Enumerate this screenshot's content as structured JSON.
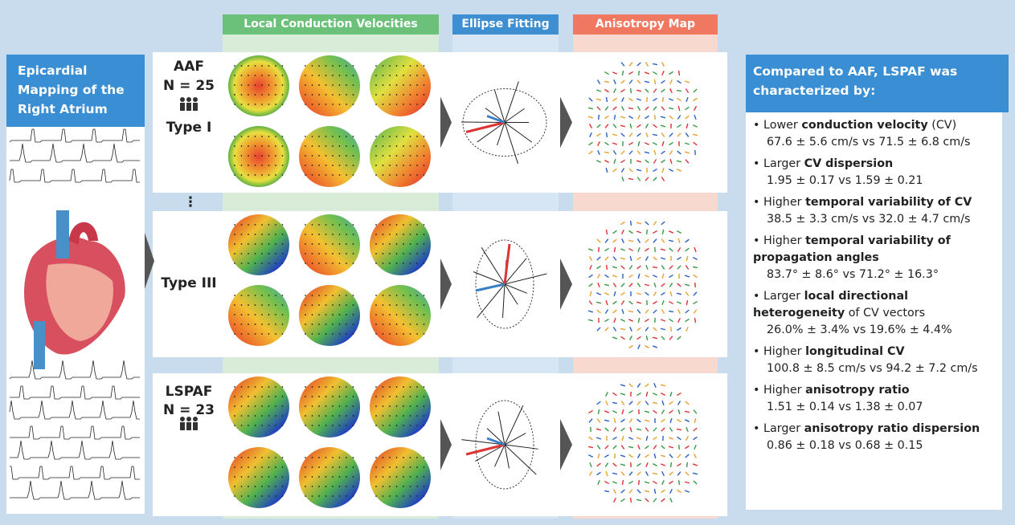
{
  "headers": [
    "Local Conduction Velocities",
    "Ellipse Fitting",
    "Anisotropy Map"
  ],
  "left_title": "Epicardial Mapping of the Right Atrium",
  "groups": [
    {
      "label": "AAF",
      "n": "N = 25",
      "type": "Type I"
    },
    {
      "ellipsis": "⋮",
      "type": "Type III"
    },
    {
      "label": "LSPAF",
      "n": "N = 23"
    }
  ],
  "summary": {
    "title": "Compared to AAF, LSPAF was characterized by:",
    "items": [
      {
        "lead": "Lower",
        "term": "conduction velocity",
        "tail": "(CV)",
        "values": "67.6 ± 5.6 cm/s vs 71.5 ± 6.8 cm/s"
      },
      {
        "lead": "Larger",
        "term": "CV dispersion",
        "values": "1.95 ± 0.17 vs 1.59 ± 0.21"
      },
      {
        "lead": "Higher",
        "term": "temporal variability of CV",
        "values": "38.5 ± 3.3 cm/s vs 32.0 ± 4.7 cm/s"
      },
      {
        "lead": "Higher",
        "term": "temporal variability of propagation angles",
        "values": "83.7° ± 8.6° vs 71.2° ± 16.3°"
      },
      {
        "lead": "Larger",
        "term": "local directional heterogeneity",
        "tail": "of CV vectors",
        "values": "26.0% ± 3.4% vs 19.6% ± 4.4%"
      },
      {
        "lead": "Higher",
        "term": "longitudinal CV",
        "values": "100.8 ± 8.5 cm/s vs 94.2 ± 7.2 cm/s"
      },
      {
        "lead": "Higher",
        "term": "anisotropy ratio",
        "values": "1.51 ± 0.14 vs 1.38 ± 0.07"
      },
      {
        "lead": "Larger",
        "term": "anisotropy ratio dispersion",
        "values": "0.86 ± 0.18 vs 0.68 ± 0.15"
      }
    ]
  }
}
